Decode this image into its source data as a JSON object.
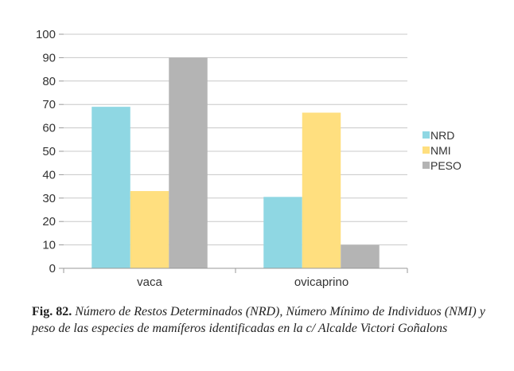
{
  "chart_data": {
    "type": "bar",
    "title": "",
    "xlabel": "",
    "ylabel": "",
    "ylim": [
      0,
      100
    ],
    "yticks": [
      0,
      10,
      20,
      30,
      40,
      50,
      60,
      70,
      80,
      90,
      100
    ],
    "categories": [
      "vaca",
      "ovicaprino"
    ],
    "series": [
      {
        "name": "NRD",
        "values": [
          69,
          30.5
        ],
        "color": "#8fd7e3"
      },
      {
        "name": "NMI",
        "values": [
          33,
          66.5
        ],
        "color": "#ffdf7f"
      },
      {
        "name": "PESO",
        "values": [
          90,
          10
        ],
        "color": "#b4b4b4"
      }
    ],
    "legend": "right",
    "grid": true
  },
  "caption": {
    "label": "Fig. 82.",
    "text": "Número de Restos Determinados (NRD), Número Mínimo de Individuos (NMI) y peso de las especies de mamíferos identificadas en la c/ Alcalde Victori Goñalons"
  }
}
